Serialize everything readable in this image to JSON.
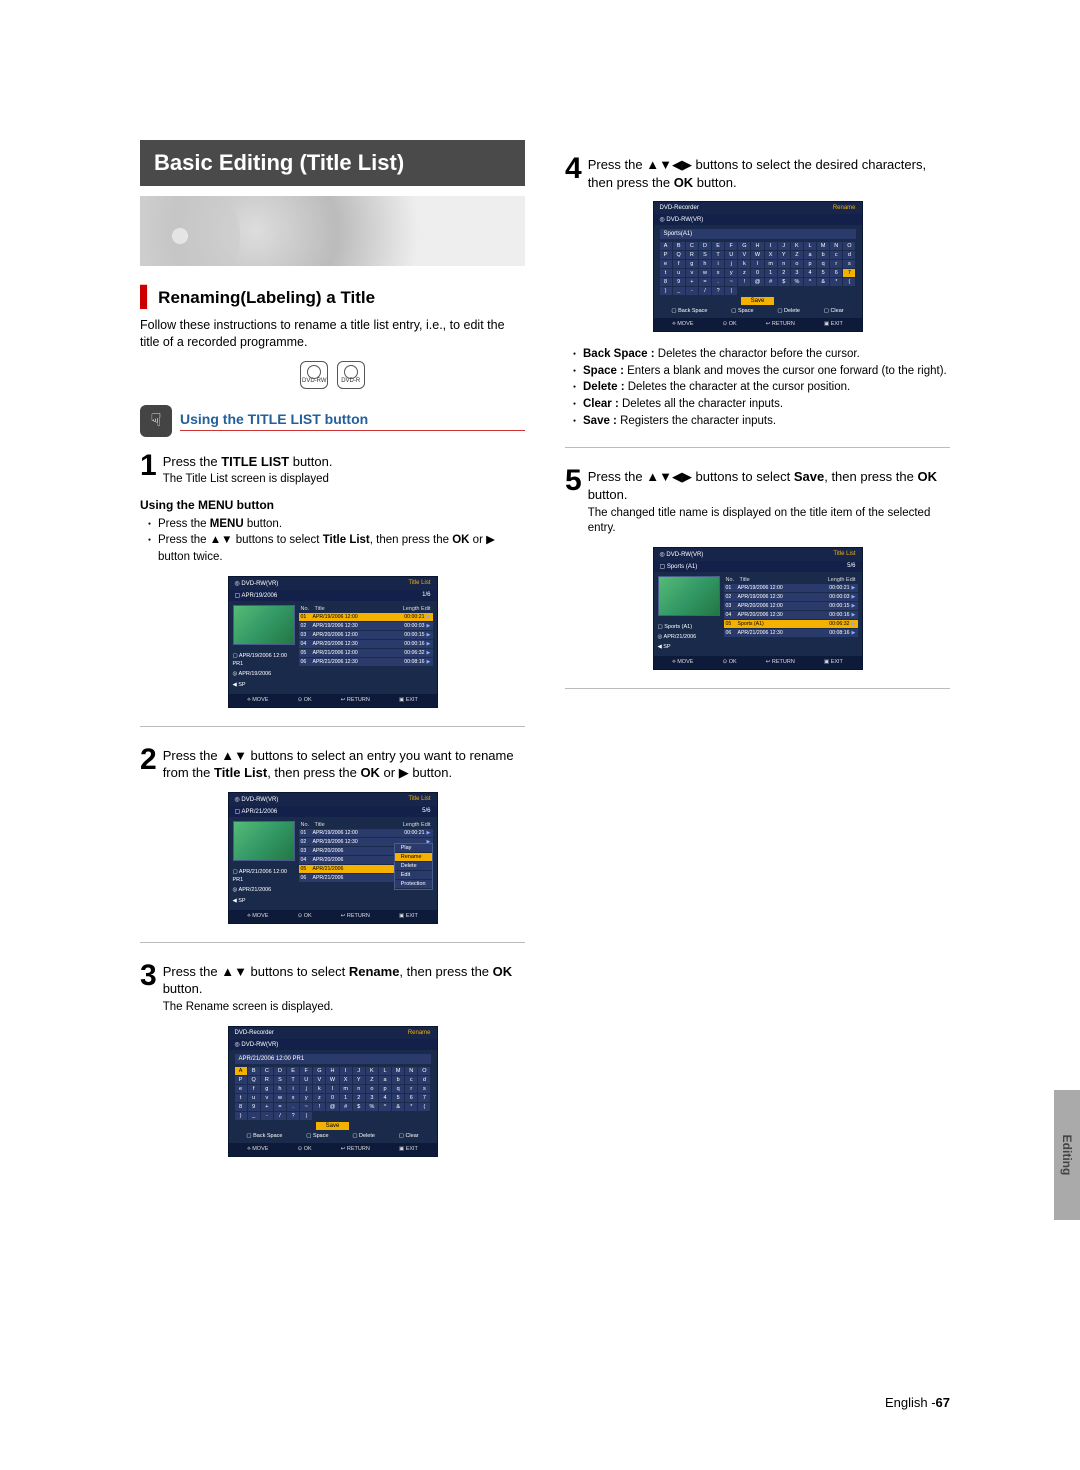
{
  "page": {
    "title": "Basic Editing (Title List)",
    "section": "Renaming(Labeling) a Title",
    "intro": "Follow these instructions to rename a title list entry, i.e., to edit the title of a recorded programme.",
    "disc_icons": [
      "DVD-RW",
      "DVD-R"
    ],
    "subhead": "Using the TITLE LIST button",
    "footer": "English -",
    "page_num": "67",
    "side_tab": "Editing"
  },
  "steps": {
    "s1": {
      "num": "1",
      "line1_a": "Press the ",
      "line1_b": "TITLE LIST",
      "line1_c": " button.",
      "sub": "The Title List screen is displayed"
    },
    "menu": {
      "head": "Using the MENU button",
      "items": [
        "Press the MENU button.",
        "Press the ▲▼ buttons to select Title List, then press the OK or ▶ button twice."
      ]
    },
    "s2": {
      "num": "2",
      "text": "Press the ▲▼ buttons to select an entry you want to rename from the Title List, then press the OK or ▶ button."
    },
    "s3": {
      "num": "3",
      "line1": "Press the ▲▼ buttons to select Rename, then press the OK button.",
      "sub": "The Rename screen is displayed."
    },
    "s4": {
      "num": "4",
      "text": "Press the ▲▼◀▶ buttons to select the desired characters, then press the OK button."
    },
    "s4_defs": [
      {
        "t": "Back Space :",
        "d": "Deletes the charactor before the cursor."
      },
      {
        "t": "Space :",
        "d": "Enters a blank and moves the cursor one forward (to the right)."
      },
      {
        "t": "Delete :",
        "d": "Deletes the character at the cursor position."
      },
      {
        "t": "Clear :",
        "d": "Deletes all the character inputs."
      },
      {
        "t": "Save :",
        "d": "Registers the character inputs."
      }
    ],
    "s5": {
      "num": "5",
      "line1": "Press the ▲▼◀▶ buttons to select Save, then press the OK button.",
      "sub": "The changed title name is displayed on the title item of the selected entry."
    }
  },
  "mini_common": {
    "device_hdr": "DVD-RW(VR)",
    "recorder_hdr": "DVD-Recorder",
    "ftr": [
      "⟡ MOVE",
      "⊙ OK",
      "↩ RETURN",
      "▣ EXIT"
    ],
    "list_hdr": [
      "No.",
      "Title",
      "Length Edit"
    ]
  },
  "mini1": {
    "title_r": "Title List",
    "sub1": "APR/19/2006",
    "counter": "1/6",
    "meta": [
      "▢ APR/19/2006 12:00 PR1",
      "◎ APR/19/2006",
      "◀  SP"
    ],
    "rows": [
      {
        "n": "01",
        "t": "APR/19/2006 12:00",
        "l": "00:00:21",
        "sel": true
      },
      {
        "n": "02",
        "t": "APR/19/2006 12:30",
        "l": "00:00:03"
      },
      {
        "n": "03",
        "t": "APR/20/2006 12:00",
        "l": "00:00:15"
      },
      {
        "n": "04",
        "t": "APR/20/2006 12:30",
        "l": "00:00:16"
      },
      {
        "n": "05",
        "t": "APR/21/2006 12:00",
        "l": "00:06:32"
      },
      {
        "n": "06",
        "t": "APR/21/2006 12:30",
        "l": "00:08:16"
      }
    ]
  },
  "mini2": {
    "title_r": "Title List",
    "sub1": "APR/21/2006",
    "counter": "5/6",
    "meta": [
      "▢ APR/21/2006 12:00 PR1",
      "◎ APR/21/2006",
      "◀  SP"
    ],
    "rows": [
      {
        "n": "01",
        "t": "APR/19/2006 12:00",
        "l": "00:00:21"
      },
      {
        "n": "02",
        "t": "APR/19/2006 12:30",
        "l": ""
      },
      {
        "n": "03",
        "t": "APR/20/2006",
        "l": ""
      },
      {
        "n": "04",
        "t": "APR/20/2006",
        "l": ""
      },
      {
        "n": "05",
        "t": "APR/21/2006",
        "l": "",
        "sel": true
      },
      {
        "n": "06",
        "t": "APR/21/2006",
        "l": ""
      }
    ],
    "popup": [
      "Play",
      "Rename",
      "Delete",
      "Edit",
      "Protection"
    ],
    "popup_sel": 1
  },
  "mini3": {
    "title_r": "Rename",
    "sub": "DVD-RW(VR)",
    "input": "APR/21/2006  12:00  PR1",
    "keys": "ABCDEFGHIJKLMNOPQRSTUVWXYZabcdefghijklmnopqrstuvwxyz0123456789+=.~!@#$%^&*()_-/?|",
    "sel_key": 0,
    "save": "Save",
    "ops": [
      "Back Space",
      "Space",
      "Delete",
      "Clear"
    ]
  },
  "mini4": {
    "title_r": "Rename",
    "sub": "DVD-RW(VR)",
    "input": "Sports(A1)",
    "keys": "ABCDEFGHIJKLMNOPQRSTUVWXYZabcdefghijklmnopqrstuvwxyz0123456789+=.~!@#$%^&*()_-/?|",
    "sel_key": 59,
    "save": "Save",
    "ops": [
      "Back Space",
      "Space",
      "Delete",
      "Clear"
    ]
  },
  "mini5": {
    "title_r": "Title List",
    "sub1": "Sports (A1)",
    "counter": "5/6",
    "meta": [
      "▢ Sports (A1)",
      "◎ APR/21/2006",
      "◀  SP"
    ],
    "rows": [
      {
        "n": "01",
        "t": "APR/19/2006 12:00",
        "l": "00:00:21"
      },
      {
        "n": "02",
        "t": "APR/19/2006 12:30",
        "l": "00:00:03"
      },
      {
        "n": "03",
        "t": "APR/20/2006 12:00",
        "l": "00:00:15"
      },
      {
        "n": "04",
        "t": "APR/20/2006 12:30",
        "l": "00:00:16"
      },
      {
        "n": "05",
        "t": "Sports (A1)",
        "l": "00:06:32",
        "sel": true
      },
      {
        "n": "06",
        "t": "APR/21/2006 12:30",
        "l": "00:08:16"
      }
    ]
  }
}
